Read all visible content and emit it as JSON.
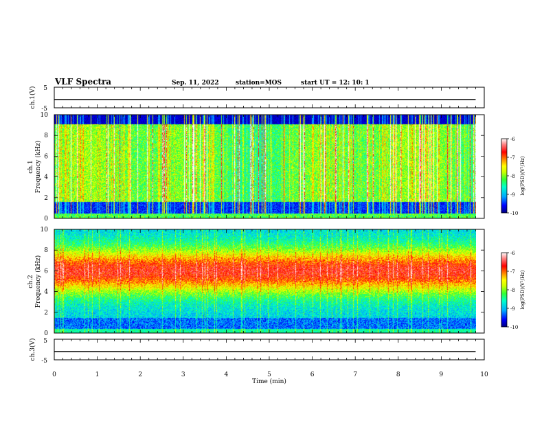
{
  "header": {
    "title": "VLF Spectra",
    "date": "Sep. 11, 2022",
    "station": "station=MOS",
    "start": "start  UT =   12: 10: 1"
  },
  "chart_data": [
    {
      "type": "line",
      "panel": "ch1-voltage",
      "ylabel": "ch.1(V)",
      "ylim": [
        -5,
        5
      ],
      "yticks": [
        "5",
        "-5"
      ],
      "xlim": [
        0,
        10
      ],
      "series": [
        {
          "x": [
            0,
            9.8
          ],
          "values": [
            -1,
            -1
          ]
        }
      ]
    },
    {
      "type": "heatmap",
      "panel": "ch1-spectrogram",
      "ylabel": "ch.1\nFrequency (kHz)",
      "ylim": [
        0,
        10
      ],
      "yticks": [
        "0",
        "2",
        "4",
        "6",
        "8",
        "10"
      ],
      "xlim": [
        0,
        9.8
      ],
      "colorbar": {
        "label": "log(PSD)(V²/Hz)",
        "range": [
          -10,
          -6
        ],
        "ticks": [
          "-6",
          "-7",
          "-8",
          "-9",
          "-10"
        ]
      },
      "description_levels": {
        "low_freq_band_max_khz": 1.5,
        "typical_level": -8.5,
        "burst_level": -7
      }
    },
    {
      "type": "heatmap",
      "panel": "ch2-spectrogram",
      "ylabel": "ch.2\nFrequency (kHz)",
      "ylim": [
        0,
        10
      ],
      "yticks": [
        "0",
        "2",
        "4",
        "6",
        "8",
        "10"
      ],
      "xlim": [
        0,
        9.8
      ],
      "colorbar": {
        "label": "log(PSD)(V²/Hz)",
        "range": [
          -10,
          -6
        ],
        "ticks": [
          "-6",
          "-7",
          "-8",
          "-9",
          "-10"
        ]
      },
      "description_levels": {
        "peak_band_khz": [
          4,
          8
        ],
        "peak_level": -7
      }
    },
    {
      "type": "line",
      "panel": "ch3-voltage",
      "ylabel": "ch.3(V)",
      "ylim": [
        -5,
        5
      ],
      "yticks": [
        "5",
        "-5"
      ],
      "xlim": [
        0,
        10
      ],
      "xlabel": "Time  (min)",
      "xticks": [
        "0",
        "1",
        "2",
        "3",
        "4",
        "5",
        "6",
        "7",
        "8",
        "9",
        "10"
      ],
      "series": [
        {
          "x": [
            0,
            9.8
          ],
          "values": [
            -1,
            -1
          ]
        }
      ]
    }
  ],
  "colors": {
    "scale": [
      "#000080",
      "#0000ff",
      "#00aaff",
      "#00ffcc",
      "#33ff33",
      "#ccff00",
      "#ffff00",
      "#ff8800",
      "#ff0000",
      "#ff8080",
      "#ffffff"
    ]
  }
}
